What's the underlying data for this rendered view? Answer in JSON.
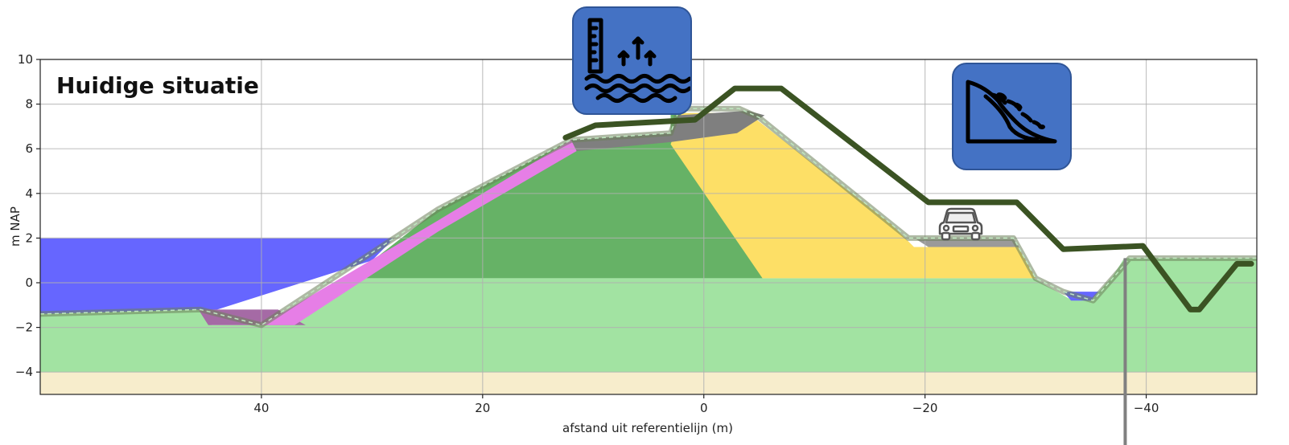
{
  "chart_data": {
    "type": "area",
    "title": "Huidige situatie",
    "xlabel": "afstand uit referentielijn (m)",
    "ylabel": "m NAP",
    "xlim": [
      60,
      -50
    ],
    "ylim": [
      -5,
      10
    ],
    "x_reversed": true,
    "grid": true,
    "xticks": [
      40,
      20,
      0,
      -20,
      -40
    ],
    "yticks": [
      -4,
      -2,
      0,
      2,
      4,
      6,
      8,
      10
    ],
    "layers": [
      {
        "id": "sand",
        "color": "#f7edcc",
        "polygon": [
          [
            60,
            -4
          ],
          [
            -50,
            -4
          ],
          [
            -50,
            -5
          ],
          [
            60,
            -5
          ]
        ]
      },
      {
        "id": "water",
        "color": "#6666ff",
        "polygon": [
          [
            60,
            2
          ],
          [
            28,
            2
          ],
          [
            30,
            1
          ],
          [
            44,
            -1.2
          ],
          [
            60,
            -1.4
          ]
        ]
      },
      {
        "id": "subsoil",
        "color": "#a2e3a2",
        "polygon": [
          [
            60,
            -1.4
          ],
          [
            45.5,
            -1.2
          ],
          [
            44.5,
            -1.9
          ],
          [
            40,
            -1.9
          ],
          [
            32,
            0.2
          ],
          [
            -29.8,
            0.2
          ],
          [
            -33,
            -0.7
          ],
          [
            -35,
            -0.8
          ],
          [
            -37,
            0.3
          ],
          [
            -38,
            1.1
          ],
          [
            -50,
            1.1
          ],
          [
            -50,
            -4
          ],
          [
            60,
            -4
          ]
        ]
      },
      {
        "id": "ditch-water",
        "color": "#6666ff",
        "polygon": [
          [
            -32.5,
            -0.4
          ],
          [
            -35.7,
            -0.4
          ],
          [
            -35,
            -0.8
          ],
          [
            -33.2,
            -0.8
          ]
        ]
      },
      {
        "id": "dike-core-green",
        "color": "#66b266",
        "polygon": [
          [
            32,
            0.2
          ],
          [
            24,
            3.3
          ],
          [
            12,
            6.4
          ],
          [
            3,
            6.7
          ],
          [
            3,
            7.6
          ],
          [
            -3,
            7.6
          ],
          [
            -5.3,
            0.2
          ]
        ]
      },
      {
        "id": "dike-core-yellow",
        "color": "#fddf66",
        "polygon": [
          [
            3,
            6.2
          ],
          [
            2,
            7.6
          ],
          [
            -4,
            7.6
          ],
          [
            -17,
            2.6
          ],
          [
            -19,
            1.6
          ],
          [
            -28.4,
            1.6
          ],
          [
            -30,
            0.2
          ],
          [
            -5.3,
            0.2
          ]
        ]
      },
      {
        "id": "revetment-dark-toe",
        "color": "#a56aa5",
        "polygon": [
          [
            45.7,
            -1.2
          ],
          [
            44.8,
            -1.9
          ],
          [
            36,
            -1.9
          ],
          [
            38.5,
            -1.2
          ]
        ]
      },
      {
        "id": "revetment",
        "color": "#e67ee6",
        "polygon": [
          [
            40,
            -1.9
          ],
          [
            24,
            2.8
          ],
          [
            12,
            6.4
          ],
          [
            11.5,
            5.9
          ],
          [
            24,
            2.3
          ],
          [
            37,
            -1.9
          ]
        ]
      },
      {
        "id": "crest-grey",
        "color": "#7f7f7f",
        "polygon": [
          [
            12,
            6.4
          ],
          [
            3,
            6.7
          ],
          [
            2.3,
            7.5
          ],
          [
            -4,
            7.7
          ],
          [
            -5.5,
            7.5
          ],
          [
            -3,
            6.7
          ],
          [
            3,
            6.3
          ],
          [
            11.5,
            5.9
          ]
        ]
      },
      {
        "id": "road-grey",
        "color": "#9a9a9a",
        "polygon": [
          [
            -19.2,
            1.95
          ],
          [
            -28,
            1.95
          ],
          [
            -28.5,
            1.6
          ],
          [
            -20.3,
            1.6
          ]
        ]
      }
    ],
    "dike_outline": {
      "color": "#6c7f5a",
      "points": [
        [
          60,
          -1.4
        ],
        [
          45.5,
          -1.2
        ],
        [
          40,
          -1.9
        ],
        [
          24,
          3.3
        ],
        [
          12,
          6.4
        ],
        [
          3,
          6.7
        ],
        [
          2.2,
          7.8
        ],
        [
          -3.2,
          7.8
        ],
        [
          -5,
          7.4
        ],
        [
          -18.5,
          2.0
        ],
        [
          -28,
          2.0
        ],
        [
          -30,
          0.2
        ],
        [
          -32.5,
          -0.4
        ],
        [
          -35.2,
          -0.8
        ],
        [
          -37.5,
          0.5
        ],
        [
          -38.5,
          1.1
        ],
        [
          -50,
          1.1
        ]
      ]
    },
    "new_profile": {
      "color": "#3b5323",
      "points": [
        [
          12.5,
          6.5
        ],
        [
          9.8,
          7.05
        ],
        [
          0.8,
          7.3
        ],
        [
          -2.8,
          8.7
        ],
        [
          -7,
          8.7
        ],
        [
          -20.3,
          3.6
        ],
        [
          -28.3,
          3.6
        ],
        [
          -32.5,
          1.5
        ],
        [
          -39.7,
          1.65
        ],
        [
          -44,
          -1.2
        ],
        [
          -44.8,
          -1.2
        ],
        [
          -48.2,
          0.85
        ],
        [
          -49.5,
          0.85
        ]
      ]
    },
    "marker_line": {
      "color": "#808080",
      "x": -38.1,
      "y_top": 1.1
    }
  },
  "icons": [
    {
      "name": "rising-water-level-icon",
      "bg": "#4472c4"
    },
    {
      "name": "landslide-slope-icon",
      "bg": "#4472c4"
    },
    {
      "name": "car-icon",
      "bg": "transparent"
    }
  ]
}
